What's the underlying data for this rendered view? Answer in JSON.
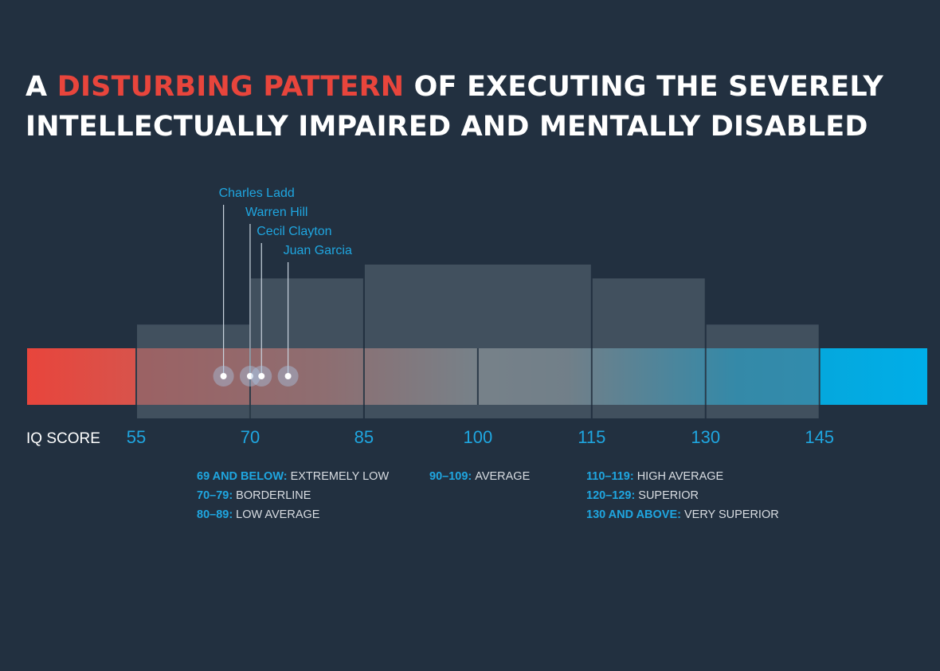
{
  "title": {
    "prefix": "A",
    "highlight": "DISTURBING PATTERN",
    "rest": "OF EXECUTING THE SEVERELY INTELLECTUALLY IMPAIRED AND MENTALLY DISABLED"
  },
  "colors": {
    "background": "#223040",
    "title_highlight": "#e8453c",
    "accent_blue": "#1fa6e0",
    "bar_red": "#e8453c",
    "bar_grey": "#8c959b",
    "bar_blue": "#00aee8",
    "distribution_block": "#5f6f7c",
    "marker": "#a9c3e0"
  },
  "chart_data": {
    "type": "bar",
    "axis_label": "IQ SCORE",
    "x_ticks": [
      55,
      70,
      85,
      100,
      115,
      130,
      145
    ],
    "x_range": [
      40.5,
      159
    ],
    "distribution_blocks": [
      {
        "from": 55,
        "to": 70,
        "relative_height": 0.61
      },
      {
        "from": 70,
        "to": 85,
        "relative_height": 0.91
      },
      {
        "from": 85,
        "to": 115,
        "relative_height": 1.0
      },
      {
        "from": 115,
        "to": 130,
        "relative_height": 0.91
      },
      {
        "from": 130,
        "to": 145,
        "relative_height": 0.61
      }
    ],
    "markers": [
      {
        "name": "Charles Ladd",
        "iq": 66.5
      },
      {
        "name": "Warren Hill",
        "iq": 70
      },
      {
        "name": "Cecil Clayton",
        "iq": 71.5
      },
      {
        "name": "Juan Garcia",
        "iq": 75
      }
    ]
  },
  "legend": {
    "low": [
      {
        "range": "69 AND BELOW:",
        "label": "EXTREMELY LOW"
      },
      {
        "range": "70–79:",
        "label": "BORDERLINE"
      },
      {
        "range": "80–89:",
        "label": "LOW AVERAGE"
      }
    ],
    "mid": [
      {
        "range": "90–109:",
        "label": "AVERAGE"
      }
    ],
    "high": [
      {
        "range": "110–119:",
        "label": "HIGH AVERAGE"
      },
      {
        "range": "120–129:",
        "label": "SUPERIOR"
      },
      {
        "range": "130 AND ABOVE:",
        "label": "VERY SUPERIOR"
      }
    ]
  }
}
